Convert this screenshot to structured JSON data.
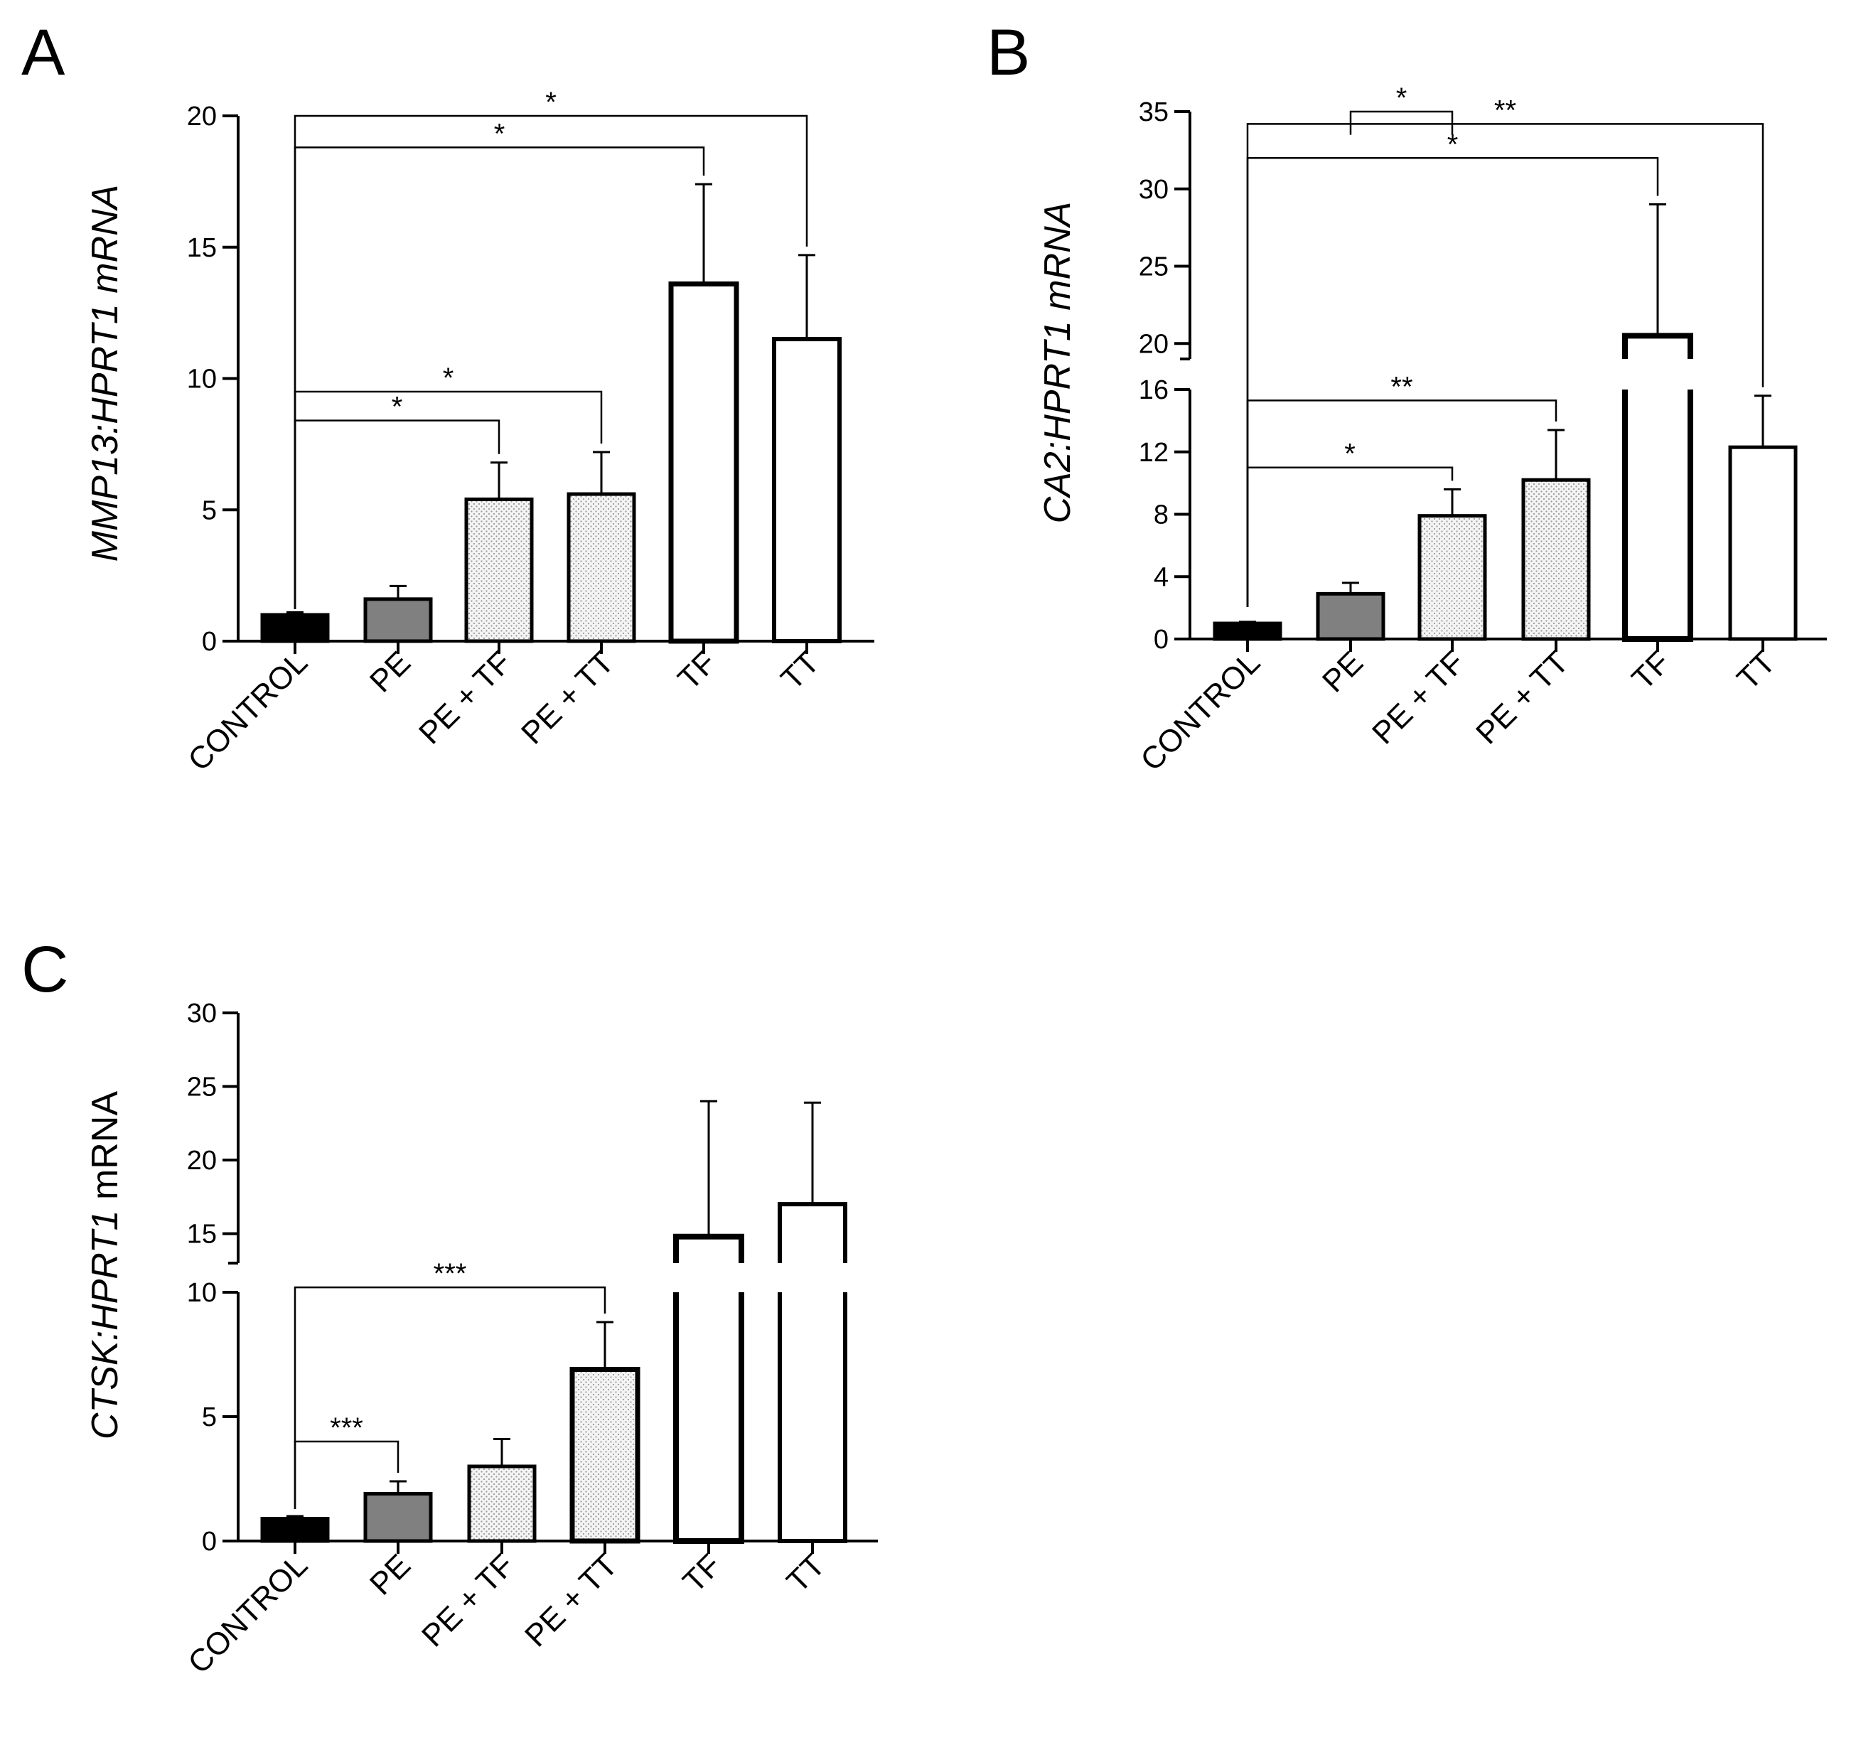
{
  "figure": {
    "categories": [
      "CONTROL",
      "PE",
      "PE + TF",
      "PE + TT",
      "TF",
      "TT"
    ],
    "fill_colors": {
      "control": "#000000",
      "pe": "#808080",
      "dotted": "#e6e6e6",
      "open": "#ffffff"
    }
  },
  "chart_data": [
    {
      "type": "bar",
      "panel": "A",
      "ylabel_italic": "MMP13:HPRT1 mRNA",
      "ylabel_plain": "",
      "categories": [
        "CONTROL",
        "PE",
        "PE + TF",
        "PE + TT",
        "TF",
        "TT"
      ],
      "values": [
        1.0,
        1.6,
        5.4,
        5.6,
        13.6,
        11.5
      ],
      "errors": [
        0.1,
        0.5,
        1.4,
        1.6,
        3.8,
        3.2
      ],
      "ylim": [
        0,
        20
      ],
      "yticks": [
        "0",
        "5",
        "10",
        "15",
        "20"
      ],
      "ytick_values": [
        0,
        5,
        10,
        15,
        20
      ],
      "axis_break": null,
      "significance": [
        {
          "from": "CONTROL",
          "to": "TT",
          "label": "*",
          "y": 20
        },
        {
          "from": "CONTROL",
          "to": "TF",
          "label": "*",
          "y": 18.8
        },
        {
          "from": "CONTROL",
          "to": "PE + TT",
          "label": "*",
          "y": 9.5
        },
        {
          "from": "CONTROL",
          "to": "PE + TF",
          "label": "*",
          "y": 8.4
        }
      ]
    },
    {
      "type": "bar",
      "panel": "B",
      "ylabel_italic": "CA2:HPRT1 mRNA",
      "ylabel_plain": "",
      "categories": [
        "CONTROL",
        "PE",
        "PE + TF",
        "PE + TT",
        "TF",
        "TT"
      ],
      "values": [
        1.0,
        2.9,
        7.9,
        10.2,
        20.5,
        12.3
      ],
      "errors": [
        0.1,
        0.7,
        1.7,
        3.2,
        8.5,
        3.3
      ],
      "ylim": [
        0,
        35
      ],
      "yticks": [
        "0",
        "4",
        "8",
        "12",
        "16",
        "20",
        "25",
        "30",
        "35"
      ],
      "ytick_values": [
        0,
        4,
        8,
        12,
        16,
        20,
        25,
        30,
        35
      ],
      "axis_break": {
        "lower_max": 16,
        "upper_min": 19
      },
      "significance": [
        {
          "from": "PE",
          "to": "PE + TF",
          "label": "*",
          "y": 35,
          "drop": 1.5
        },
        {
          "from": "CONTROL",
          "to": "TT",
          "label": "**",
          "y": 34.2
        },
        {
          "from": "CONTROL",
          "to": "TF",
          "label": "*",
          "y": 32
        },
        {
          "from": "CONTROL",
          "to": "PE + TT",
          "label": "**",
          "y": 15.3
        },
        {
          "from": "CONTROL",
          "to": "PE + TF",
          "label": "*",
          "y": 11
        }
      ]
    },
    {
      "type": "bar",
      "panel": "C",
      "ylabel_italic": "CTSK:HPRT1",
      "ylabel_plain": " mRNA",
      "categories": [
        "CONTROL",
        "PE",
        "PE + TF",
        "PE + TT",
        "TF",
        "TT"
      ],
      "values": [
        0.9,
        1.9,
        3.0,
        6.9,
        14.8,
        17.0
      ],
      "errors": [
        0.1,
        0.5,
        1.1,
        1.9,
        9.2,
        6.9
      ],
      "ylim": [
        0,
        30
      ],
      "yticks": [
        "0",
        "5",
        "10",
        "15",
        "20",
        "25",
        "30"
      ],
      "ytick_values": [
        0,
        5,
        10,
        15,
        20,
        25,
        30
      ],
      "axis_break": {
        "lower_max": 10,
        "upper_min": 13
      },
      "significance": [
        {
          "from": "CONTROL",
          "to": "PE + TT",
          "label": "***",
          "y": 10.5
        },
        {
          "from": "CONTROL",
          "to": "PE",
          "label": "***",
          "y": 4
        }
      ]
    }
  ]
}
